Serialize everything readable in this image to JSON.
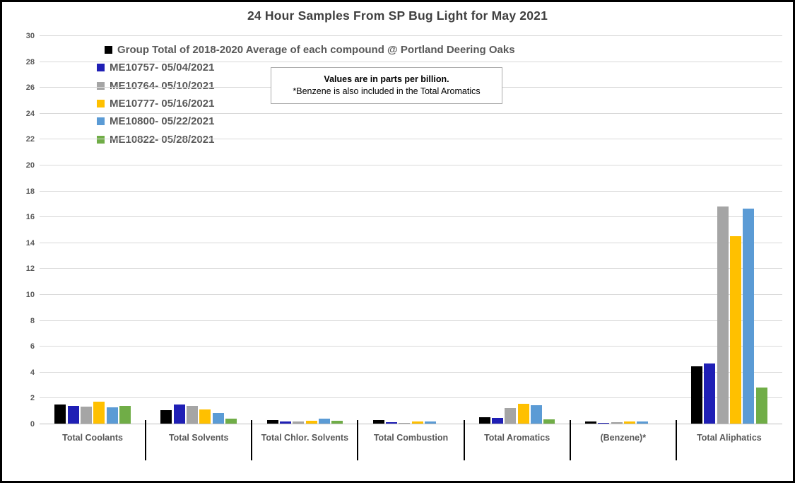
{
  "title": "24 Hour Samples From SP Bug Light for May 2021",
  "annotation": {
    "line1": "Values are in parts per billion.",
    "line2": "*Benzene is also included in the Total Aromatics"
  },
  "chart_data": {
    "type": "bar",
    "title": "24 Hour Samples From SP Bug Light for May 2021",
    "units": "parts per billion",
    "categories": [
      "Total Coolants",
      "Total Solvents",
      "Total Chlor. Solvents",
      "Total Combustion",
      "Total Aromatics",
      "(Benzene)*",
      "Total Aliphatics"
    ],
    "series": [
      {
        "name": "Group Total of 2018-2020 Average of each compound @ Portland Deering Oaks",
        "color": "#000000",
        "values": [
          1.45,
          1.05,
          0.3,
          0.25,
          0.5,
          0.15,
          4.4
        ]
      },
      {
        "name": "ME10757- 05/04/2021",
        "color": "#1F1FB5",
        "values": [
          1.35,
          1.45,
          0.15,
          0.1,
          0.45,
          0.05,
          4.65
        ]
      },
      {
        "name": "ME10764- 05/10/2021",
        "color": "#A5A5A5",
        "values": [
          1.3,
          1.35,
          0.18,
          0.06,
          1.2,
          0.1,
          16.8
        ]
      },
      {
        "name": "ME10777- 05/16/2021",
        "color": "#FFC000",
        "values": [
          1.7,
          1.1,
          0.2,
          0.18,
          1.55,
          0.18,
          14.5
        ]
      },
      {
        "name": "ME10800- 05/22/2021",
        "color": "#5B9BD5",
        "values": [
          1.25,
          0.8,
          0.4,
          0.15,
          1.4,
          0.18,
          16.6
        ]
      },
      {
        "name": "ME10822- 05/28/2021",
        "color": "#70AD47",
        "values": [
          1.35,
          0.4,
          0.22,
          0,
          0.35,
          0,
          2.8
        ]
      }
    ],
    "ylim": [
      0,
      30
    ],
    "ytick_step": 2,
    "grid": true,
    "legend_position": "inside-top-left",
    "gridline_color": "#D9D9D9",
    "axis_text_color": "#595959"
  }
}
